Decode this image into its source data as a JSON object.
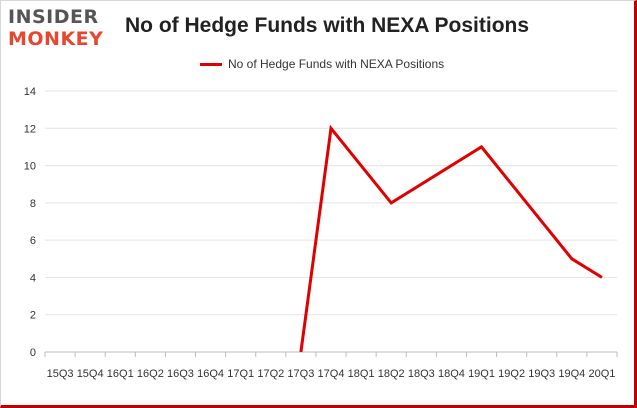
{
  "logo": {
    "line1": "INSIDER",
    "line2": "MONKEY"
  },
  "chart_data": {
    "type": "line",
    "title": "No of Hedge Funds with NEXA Positions",
    "xlabel": "",
    "ylabel": "",
    "categories": [
      "2015Q3",
      "2015Q4",
      "2016Q1",
      "2016Q2",
      "2016Q3",
      "2016Q4",
      "2017Q1",
      "2017Q2",
      "2017Q3",
      "2017Q4",
      "2018Q1",
      "2018Q2",
      "2018Q3",
      "2018Q4",
      "2019Q1",
      "2019Q2",
      "2019Q3",
      "2019Q4",
      "2020Q1"
    ],
    "tick_labels": [
      "15Q3",
      "15Q4",
      "16Q1",
      "16Q2",
      "16Q3",
      "16Q4",
      "17Q1",
      "17Q2",
      "17Q3",
      "17Q4",
      "18Q1",
      "18Q2",
      "18Q3",
      "18Q4",
      "19Q1",
      "19Q2",
      "19Q3",
      "19Q4",
      "20Q1"
    ],
    "series": [
      {
        "name": "No of Hedge Funds with NEXA Positions",
        "color": "#e00000",
        "values": [
          null,
          null,
          null,
          null,
          null,
          null,
          null,
          null,
          0,
          12,
          null,
          8,
          null,
          null,
          11,
          null,
          null,
          5,
          4
        ]
      }
    ],
    "ylim": [
      0,
      14
    ],
    "yticks": [
      0,
      2,
      4,
      6,
      8,
      10,
      12,
      14
    ],
    "grid": true,
    "legend": "top-center"
  }
}
